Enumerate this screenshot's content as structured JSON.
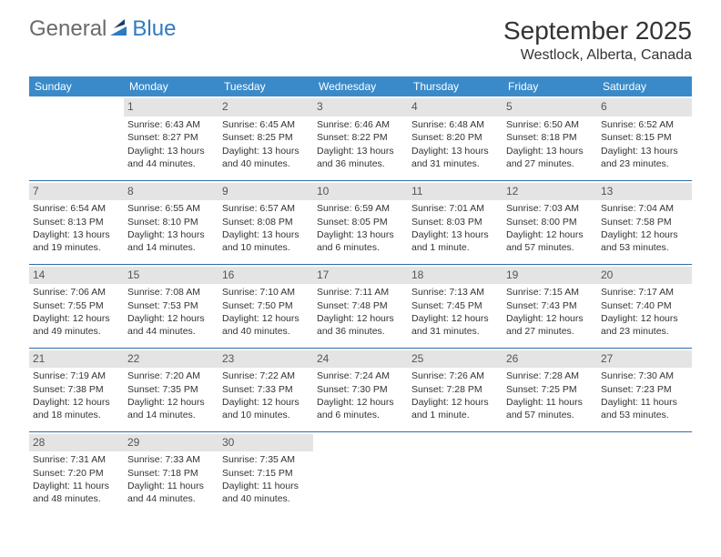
{
  "logo": {
    "general": "General",
    "blue": "Blue"
  },
  "title": "September 2025",
  "location": "Westlock, Alberta, Canada",
  "column_headers": [
    "Sunday",
    "Monday",
    "Tuesday",
    "Wednesday",
    "Thursday",
    "Friday",
    "Saturday"
  ],
  "colors": {
    "header_bg": "#3a8ac9",
    "header_fg": "#ffffff",
    "daynum_bg": "#e4e4e4",
    "daynum_fg": "#555555",
    "border": "#2f6da6",
    "logo_gray": "#6a6a6a",
    "logo_blue": "#2f7bbf",
    "text": "#333333"
  },
  "weeks": [
    [
      null,
      {
        "n": "1",
        "sunrise": "Sunrise: 6:43 AM",
        "sunset": "Sunset: 8:27 PM",
        "daylight": "Daylight: 13 hours and 44 minutes."
      },
      {
        "n": "2",
        "sunrise": "Sunrise: 6:45 AM",
        "sunset": "Sunset: 8:25 PM",
        "daylight": "Daylight: 13 hours and 40 minutes."
      },
      {
        "n": "3",
        "sunrise": "Sunrise: 6:46 AM",
        "sunset": "Sunset: 8:22 PM",
        "daylight": "Daylight: 13 hours and 36 minutes."
      },
      {
        "n": "4",
        "sunrise": "Sunrise: 6:48 AM",
        "sunset": "Sunset: 8:20 PM",
        "daylight": "Daylight: 13 hours and 31 minutes."
      },
      {
        "n": "5",
        "sunrise": "Sunrise: 6:50 AM",
        "sunset": "Sunset: 8:18 PM",
        "daylight": "Daylight: 13 hours and 27 minutes."
      },
      {
        "n": "6",
        "sunrise": "Sunrise: 6:52 AM",
        "sunset": "Sunset: 8:15 PM",
        "daylight": "Daylight: 13 hours and 23 minutes."
      }
    ],
    [
      {
        "n": "7",
        "sunrise": "Sunrise: 6:54 AM",
        "sunset": "Sunset: 8:13 PM",
        "daylight": "Daylight: 13 hours and 19 minutes."
      },
      {
        "n": "8",
        "sunrise": "Sunrise: 6:55 AM",
        "sunset": "Sunset: 8:10 PM",
        "daylight": "Daylight: 13 hours and 14 minutes."
      },
      {
        "n": "9",
        "sunrise": "Sunrise: 6:57 AM",
        "sunset": "Sunset: 8:08 PM",
        "daylight": "Daylight: 13 hours and 10 minutes."
      },
      {
        "n": "10",
        "sunrise": "Sunrise: 6:59 AM",
        "sunset": "Sunset: 8:05 PM",
        "daylight": "Daylight: 13 hours and 6 minutes."
      },
      {
        "n": "11",
        "sunrise": "Sunrise: 7:01 AM",
        "sunset": "Sunset: 8:03 PM",
        "daylight": "Daylight: 13 hours and 1 minute."
      },
      {
        "n": "12",
        "sunrise": "Sunrise: 7:03 AM",
        "sunset": "Sunset: 8:00 PM",
        "daylight": "Daylight: 12 hours and 57 minutes."
      },
      {
        "n": "13",
        "sunrise": "Sunrise: 7:04 AM",
        "sunset": "Sunset: 7:58 PM",
        "daylight": "Daylight: 12 hours and 53 minutes."
      }
    ],
    [
      {
        "n": "14",
        "sunrise": "Sunrise: 7:06 AM",
        "sunset": "Sunset: 7:55 PM",
        "daylight": "Daylight: 12 hours and 49 minutes."
      },
      {
        "n": "15",
        "sunrise": "Sunrise: 7:08 AM",
        "sunset": "Sunset: 7:53 PM",
        "daylight": "Daylight: 12 hours and 44 minutes."
      },
      {
        "n": "16",
        "sunrise": "Sunrise: 7:10 AM",
        "sunset": "Sunset: 7:50 PM",
        "daylight": "Daylight: 12 hours and 40 minutes."
      },
      {
        "n": "17",
        "sunrise": "Sunrise: 7:11 AM",
        "sunset": "Sunset: 7:48 PM",
        "daylight": "Daylight: 12 hours and 36 minutes."
      },
      {
        "n": "18",
        "sunrise": "Sunrise: 7:13 AM",
        "sunset": "Sunset: 7:45 PM",
        "daylight": "Daylight: 12 hours and 31 minutes."
      },
      {
        "n": "19",
        "sunrise": "Sunrise: 7:15 AM",
        "sunset": "Sunset: 7:43 PM",
        "daylight": "Daylight: 12 hours and 27 minutes."
      },
      {
        "n": "20",
        "sunrise": "Sunrise: 7:17 AM",
        "sunset": "Sunset: 7:40 PM",
        "daylight": "Daylight: 12 hours and 23 minutes."
      }
    ],
    [
      {
        "n": "21",
        "sunrise": "Sunrise: 7:19 AM",
        "sunset": "Sunset: 7:38 PM",
        "daylight": "Daylight: 12 hours and 18 minutes."
      },
      {
        "n": "22",
        "sunrise": "Sunrise: 7:20 AM",
        "sunset": "Sunset: 7:35 PM",
        "daylight": "Daylight: 12 hours and 14 minutes."
      },
      {
        "n": "23",
        "sunrise": "Sunrise: 7:22 AM",
        "sunset": "Sunset: 7:33 PM",
        "daylight": "Daylight: 12 hours and 10 minutes."
      },
      {
        "n": "24",
        "sunrise": "Sunrise: 7:24 AM",
        "sunset": "Sunset: 7:30 PM",
        "daylight": "Daylight: 12 hours and 6 minutes."
      },
      {
        "n": "25",
        "sunrise": "Sunrise: 7:26 AM",
        "sunset": "Sunset: 7:28 PM",
        "daylight": "Daylight: 12 hours and 1 minute."
      },
      {
        "n": "26",
        "sunrise": "Sunrise: 7:28 AM",
        "sunset": "Sunset: 7:25 PM",
        "daylight": "Daylight: 11 hours and 57 minutes."
      },
      {
        "n": "27",
        "sunrise": "Sunrise: 7:30 AM",
        "sunset": "Sunset: 7:23 PM",
        "daylight": "Daylight: 11 hours and 53 minutes."
      }
    ],
    [
      {
        "n": "28",
        "sunrise": "Sunrise: 7:31 AM",
        "sunset": "Sunset: 7:20 PM",
        "daylight": "Daylight: 11 hours and 48 minutes."
      },
      {
        "n": "29",
        "sunrise": "Sunrise: 7:33 AM",
        "sunset": "Sunset: 7:18 PM",
        "daylight": "Daylight: 11 hours and 44 minutes."
      },
      {
        "n": "30",
        "sunrise": "Sunrise: 7:35 AM",
        "sunset": "Sunset: 7:15 PM",
        "daylight": "Daylight: 11 hours and 40 minutes."
      },
      null,
      null,
      null,
      null
    ]
  ]
}
